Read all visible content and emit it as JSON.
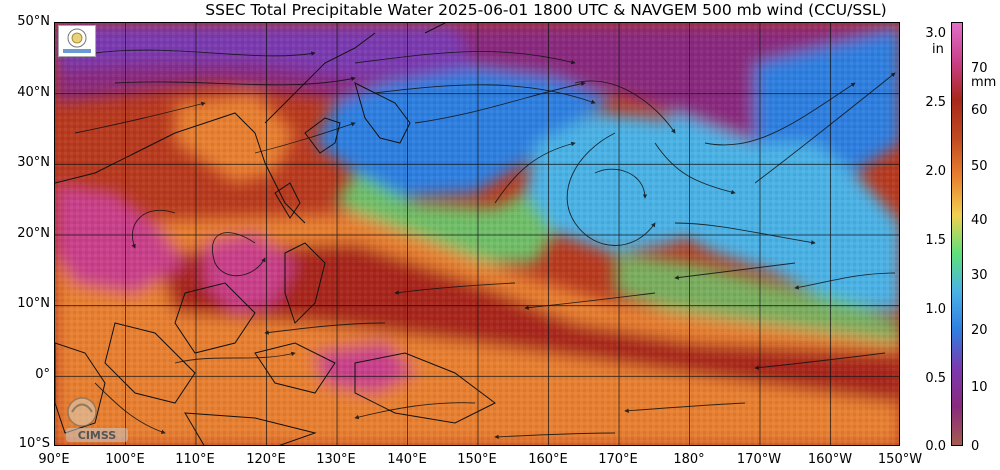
{
  "title": "SSEC Total Precipitable Water  2025-06-01 1800 UTC & NAVGEM 500 mb wind (CCU/SSL)",
  "map": {
    "lat_labels": [
      "50°N",
      "40°N",
      "30°N",
      "20°N",
      "10°N",
      "0°",
      "10°S"
    ],
    "lon_labels": [
      "90°E",
      "100°E",
      "110°E",
      "120°E",
      "130°E",
      "140°E",
      "150°E",
      "160°E",
      "170°E",
      "180°",
      "170°W",
      "160°W",
      "150°W"
    ],
    "lat_range": [
      -10,
      50
    ],
    "lon_range": [
      90,
      210
    ],
    "grid": true,
    "streamlines": true
  },
  "colorbar": {
    "unit_in": "in",
    "unit_mm": "mm",
    "ticks_in": [
      "3.0",
      "2.5",
      "2.0",
      "1.5",
      "1.0",
      "0.5",
      "0.0"
    ],
    "ticks_in_values": [
      3.0,
      2.5,
      2.0,
      1.5,
      1.0,
      0.5,
      0.0
    ],
    "ticks_mm": [
      "70",
      "60",
      "50",
      "40",
      "30",
      "20",
      "10",
      "0"
    ],
    "ticks_mm_values": [
      70,
      60,
      50,
      40,
      30,
      20,
      10,
      0
    ],
    "range_mm": [
      0,
      80
    ],
    "colors": [
      "#a45c50",
      "#8a2a7e",
      "#7a3ab0",
      "#2f7fe0",
      "#4bb2e6",
      "#5fe07a",
      "#f0d050",
      "#e88030",
      "#c14a22",
      "#a8281a",
      "#c9408a",
      "#e070c8"
    ]
  },
  "logos": {
    "cimss_text": "CIMSS",
    "ssec_icon": "ssec-seal-icon"
  }
}
